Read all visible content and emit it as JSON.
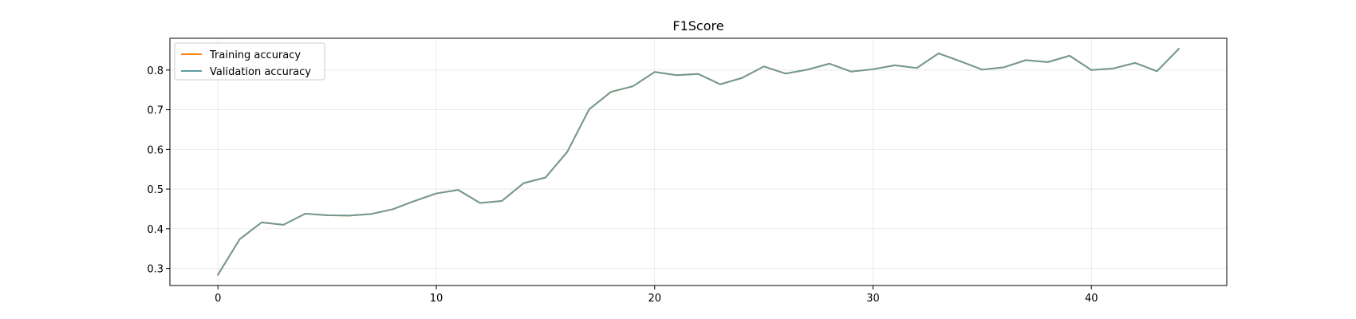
{
  "chart_data": {
    "type": "line",
    "title": "F1Score",
    "xlabel": "",
    "ylabel": "",
    "xlim": [
      -2.2,
      46.2
    ],
    "ylim": [
      0.257,
      0.88
    ],
    "xticks": [
      0,
      10,
      20,
      30,
      40
    ],
    "yticks": [
      0.3,
      0.4,
      0.5,
      0.6,
      0.7,
      0.8
    ],
    "grid": true,
    "legend": "upper left",
    "x": [
      0,
      1,
      2,
      3,
      4,
      5,
      6,
      7,
      8,
      9,
      10,
      11,
      12,
      13,
      14,
      15,
      16,
      17,
      18,
      19,
      20,
      21,
      22,
      23,
      24,
      25,
      26,
      27,
      28,
      29,
      30,
      31,
      32,
      33,
      34,
      35,
      36,
      37,
      38,
      39,
      40,
      41,
      42,
      43,
      44
    ],
    "series": [
      {
        "name": "Training accuracy",
        "color": "#ff7f0e",
        "values": [
          0.284,
          0.374,
          0.416,
          0.41,
          0.438,
          0.434,
          0.433,
          0.437,
          0.449,
          0.47,
          0.489,
          0.498,
          0.465,
          0.47,
          0.515,
          0.529,
          0.594,
          0.701,
          0.745,
          0.759,
          0.795,
          0.787,
          0.79,
          0.764,
          0.78,
          0.809,
          0.791,
          0.801,
          0.816,
          0.796,
          0.802,
          0.812,
          0.805,
          0.842,
          0.822,
          0.801,
          0.807,
          0.825,
          0.82,
          0.836,
          0.8,
          0.804,
          0.818,
          0.797,
          0.853
        ]
      },
      {
        "name": "Validation accuracy",
        "color": "#5f9e9e",
        "values": [
          0.284,
          0.374,
          0.416,
          0.41,
          0.438,
          0.434,
          0.433,
          0.437,
          0.449,
          0.47,
          0.489,
          0.498,
          0.465,
          0.47,
          0.515,
          0.529,
          0.594,
          0.701,
          0.745,
          0.759,
          0.795,
          0.787,
          0.79,
          0.764,
          0.78,
          0.809,
          0.791,
          0.801,
          0.816,
          0.796,
          0.802,
          0.812,
          0.805,
          0.842,
          0.822,
          0.801,
          0.807,
          0.825,
          0.82,
          0.836,
          0.8,
          0.804,
          0.818,
          0.797,
          0.853
        ]
      }
    ]
  }
}
